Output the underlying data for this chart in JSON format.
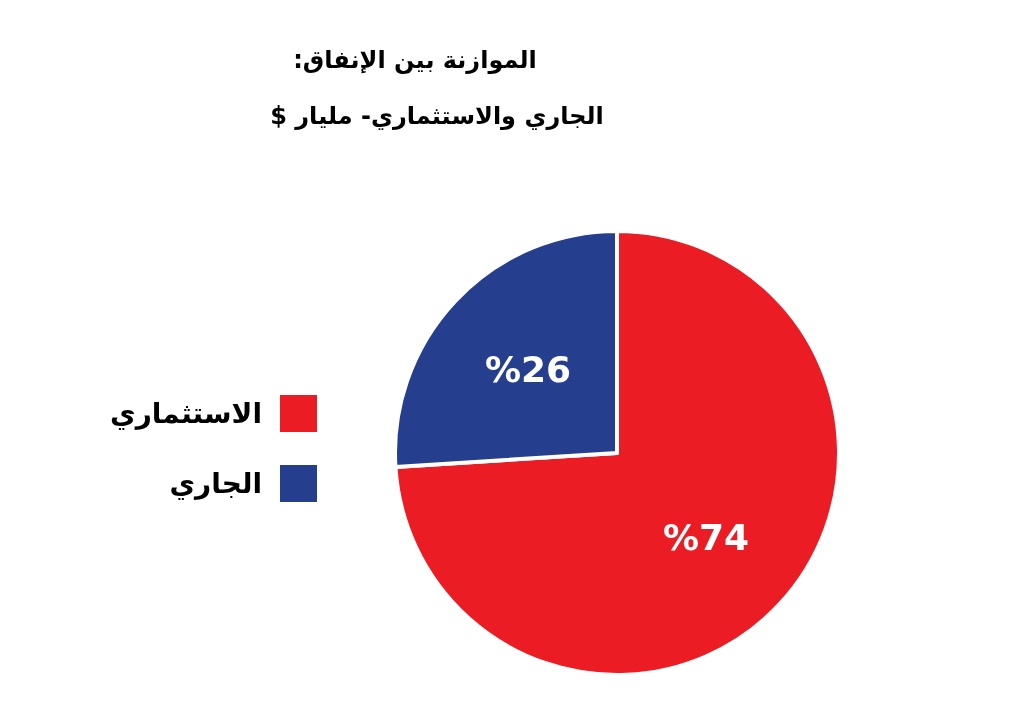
{
  "chart_data": {
    "type": "pie",
    "title": "الموازنة بين الإنفاق:",
    "subtitle": "الجاري والاستثماري- مليار $",
    "categories": [
      "الاستثماري",
      "الجاري"
    ],
    "values": [
      74,
      26
    ],
    "colors": [
      "#ec1c24",
      "#253f8e"
    ],
    "value_labels": [
      "%74",
      "%26"
    ],
    "legend": "left"
  }
}
